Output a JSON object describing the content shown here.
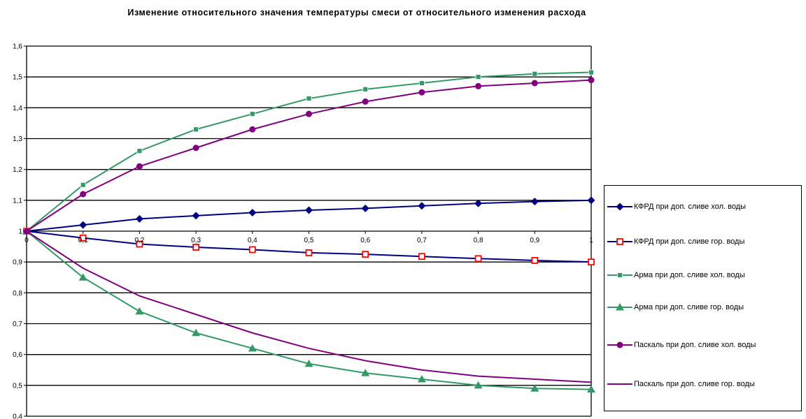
{
  "chart_data": {
    "type": "line",
    "title": "Изменение относительного значения температуры смеси от относительного изменения расхода",
    "xlabel": "",
    "ylabel": "",
    "x": [
      0,
      0.1,
      0.2,
      0.3,
      0.4,
      0.5,
      0.6,
      0.7,
      0.8,
      0.9,
      1
    ],
    "x_tick_labels": [
      "0",
      "0,1",
      "0,2",
      "0,3",
      "0,4",
      "0,5",
      "0,6",
      "0,7",
      "0,8",
      "0,9",
      "1"
    ],
    "ylim": [
      0.4,
      1.6
    ],
    "y_ticks": [
      0.4,
      0.5,
      0.6,
      0.7,
      0.8,
      0.9,
      1.0,
      1.1,
      1.2,
      1.3,
      1.4,
      1.5,
      1.6
    ],
    "y_tick_labels": [
      "0,4",
      "0,5",
      "0,6",
      "0,7",
      "0,8",
      "0,9",
      "1",
      "1,1",
      "1,2",
      "1,3",
      "1,4",
      "1,5",
      "1,6"
    ],
    "grid": "horizontal",
    "legend_position": "right",
    "series": [
      {
        "name": "КФРД при доп. сливе хол. воды",
        "color": "#000080",
        "marker": "diamond",
        "values": [
          1,
          1.02,
          1.04,
          1.05,
          1.06,
          1.068,
          1.074,
          1.082,
          1.09,
          1.096,
          1.1
        ]
      },
      {
        "name": "КФРД при доп. сливе гор. воды",
        "color": "#000080",
        "marker": "square-red",
        "values": [
          1,
          0.978,
          0.958,
          0.948,
          0.94,
          0.93,
          0.925,
          0.918,
          0.911,
          0.905,
          0.9
        ]
      },
      {
        "name": "Арма при доп. сливе хол. воды",
        "color": "#339966",
        "marker": "square",
        "values": [
          1,
          1.15,
          1.26,
          1.33,
          1.38,
          1.43,
          1.46,
          1.48,
          1.5,
          1.51,
          1.515
        ]
      },
      {
        "name": "Арма при доп. сливе гор. воды",
        "color": "#339966",
        "marker": "triangle",
        "values": [
          1,
          0.85,
          0.74,
          0.67,
          0.62,
          0.57,
          0.54,
          0.52,
          0.5,
          0.49,
          0.487
        ]
      },
      {
        "name": "Паскаль при доп. сливе хол. воды",
        "color": "#800080",
        "marker": "circle",
        "values": [
          1,
          1.12,
          1.21,
          1.27,
          1.33,
          1.38,
          1.42,
          1.45,
          1.47,
          1.48,
          1.49
        ]
      },
      {
        "name": "Паскаль при доп. сливе гор. воды",
        "color": "#800080",
        "marker": "none",
        "values": [
          1,
          0.88,
          0.79,
          0.73,
          0.67,
          0.62,
          0.58,
          0.55,
          0.53,
          0.52,
          0.51
        ]
      }
    ]
  }
}
